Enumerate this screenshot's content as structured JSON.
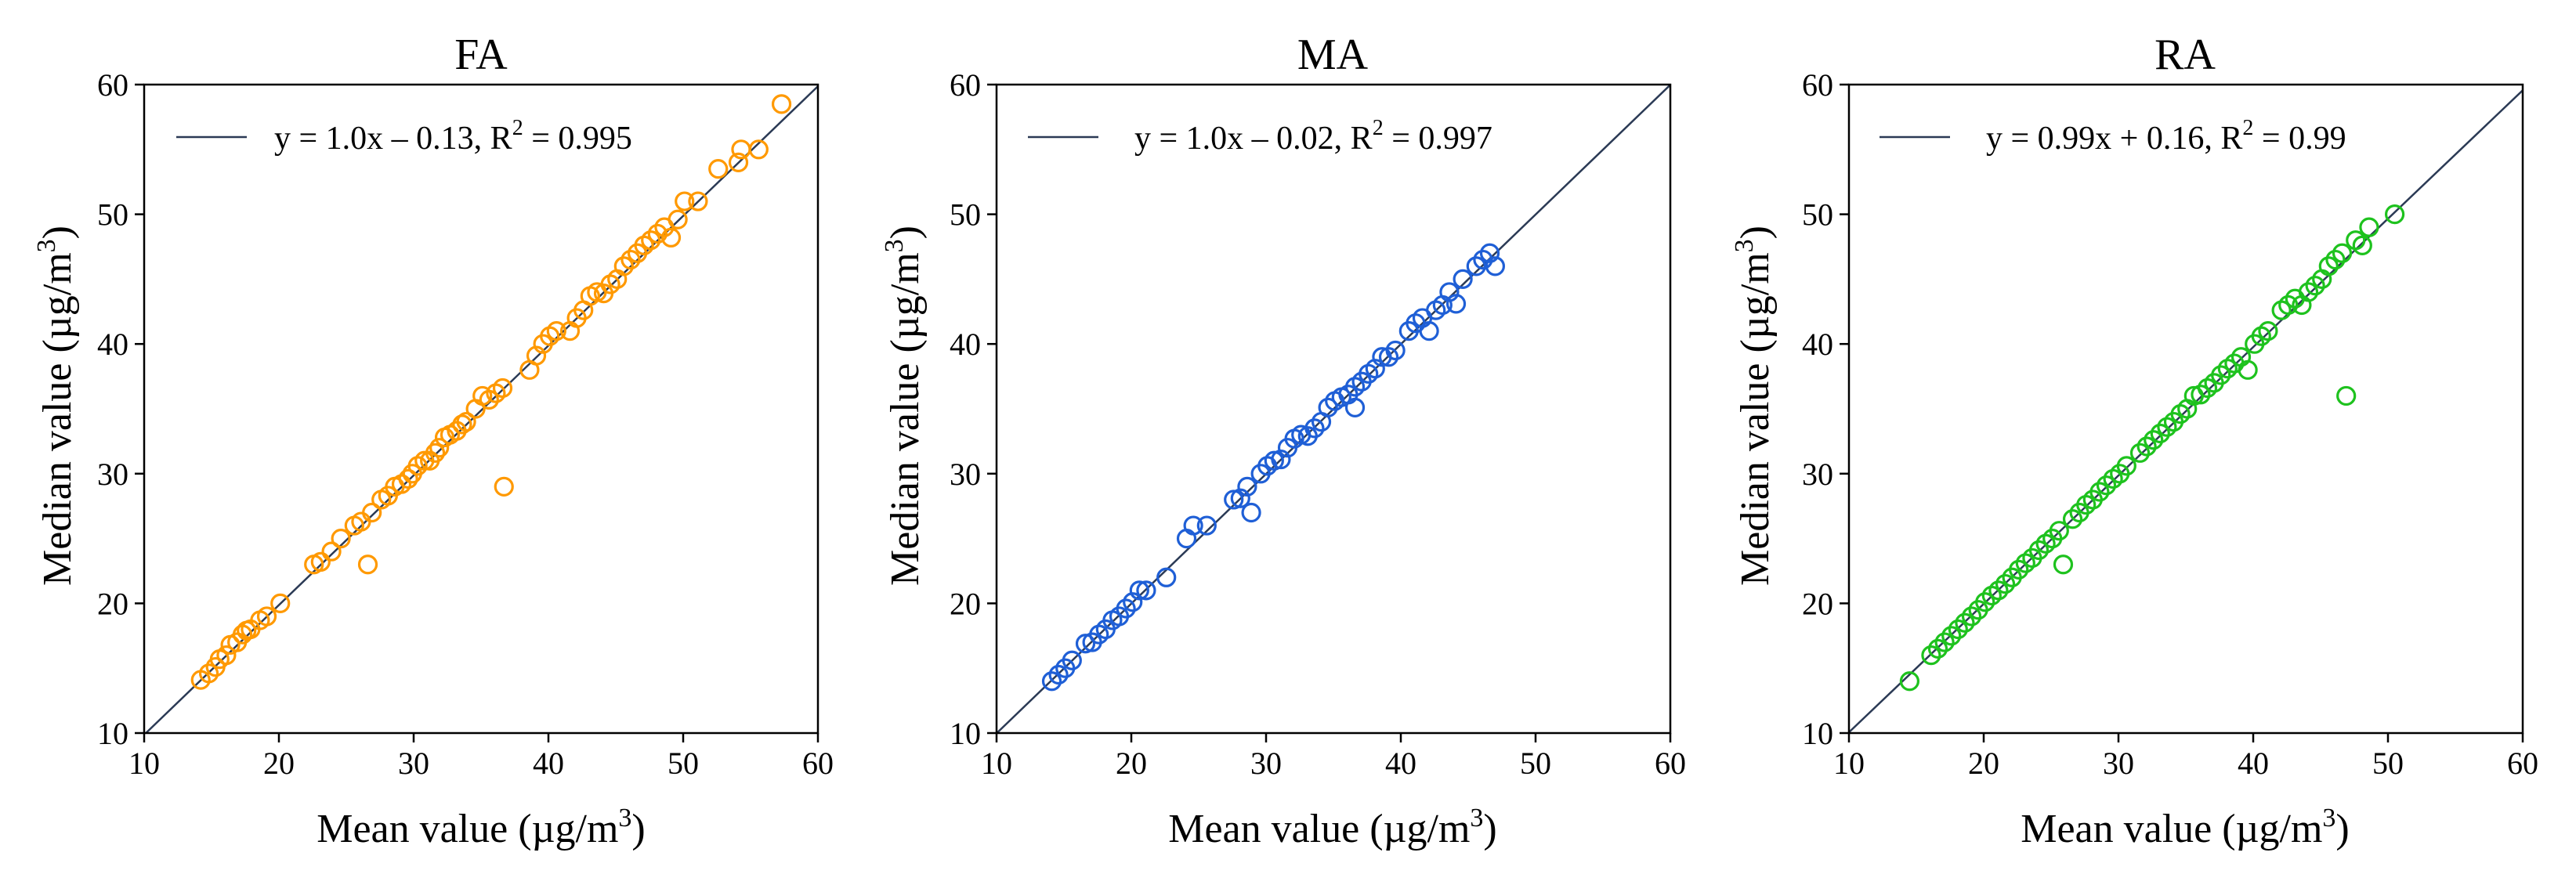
{
  "chart_data": [
    {
      "type": "scatter",
      "title": "FA",
      "xlabel": "Mean value (µg/m",
      "xlabel_sup": "3",
      "xlabel_end": ")",
      "ylabel": "Median value (µg/m",
      "ylabel_sup": "3",
      "ylabel_end": ")",
      "xlim": [
        10,
        60
      ],
      "ylim": [
        10,
        60
      ],
      "ticks": [
        10,
        20,
        30,
        40,
        50,
        60
      ],
      "color": "#FF9900",
      "line_color": "#2B3A55",
      "fit": {
        "slope": 1.0,
        "intercept": -0.13
      },
      "legend_label": "y = 1.0x – 0.13, R",
      "legend_sup": "2",
      "legend_end": " = 0.995",
      "legend_loc": "upper-left",
      "points": [
        [
          14.2,
          14.1
        ],
        [
          14.8,
          14.6
        ],
        [
          15.3,
          15.1
        ],
        [
          15.6,
          15.7
        ],
        [
          16.1,
          16.0
        ],
        [
          16.4,
          16.8
        ],
        [
          16.9,
          17.0
        ],
        [
          17.3,
          17.6
        ],
        [
          17.6,
          17.9
        ],
        [
          17.9,
          18.0
        ],
        [
          18.6,
          18.7
        ],
        [
          19.1,
          19.0
        ],
        [
          20.1,
          20.0
        ],
        [
          22.6,
          23.0
        ],
        [
          23.1,
          23.2
        ],
        [
          23.9,
          24.0
        ],
        [
          24.6,
          25.0
        ],
        [
          25.6,
          26.0
        ],
        [
          26.1,
          26.3
        ],
        [
          26.6,
          23.0
        ],
        [
          26.9,
          27.0
        ],
        [
          27.6,
          28.0
        ],
        [
          28.1,
          28.3
        ],
        [
          28.6,
          29.0
        ],
        [
          29.1,
          29.2
        ],
        [
          29.6,
          29.6
        ],
        [
          29.9,
          30.0
        ],
        [
          30.3,
          30.6
        ],
        [
          30.8,
          31.0
        ],
        [
          31.2,
          31.0
        ],
        [
          31.6,
          31.6
        ],
        [
          31.9,
          32.0
        ],
        [
          32.3,
          32.8
        ],
        [
          32.7,
          33.0
        ],
        [
          33.2,
          33.3
        ],
        [
          33.6,
          33.8
        ],
        [
          33.9,
          34.0
        ],
        [
          34.6,
          35.0
        ],
        [
          35.1,
          36.0
        ],
        [
          35.6,
          35.7
        ],
        [
          36.1,
          36.2
        ],
        [
          36.6,
          36.6
        ],
        [
          36.7,
          29.0
        ],
        [
          38.6,
          38.0
        ],
        [
          39.1,
          39.1
        ],
        [
          39.6,
          40.0
        ],
        [
          40.1,
          40.6
        ],
        [
          40.6,
          41.0
        ],
        [
          41.6,
          41.0
        ],
        [
          42.1,
          42.0
        ],
        [
          42.6,
          42.6
        ],
        [
          43.1,
          43.7
        ],
        [
          43.6,
          44.0
        ],
        [
          44.1,
          43.9
        ],
        [
          44.6,
          44.6
        ],
        [
          45.1,
          45.0
        ],
        [
          45.6,
          46.0
        ],
        [
          46.1,
          46.5
        ],
        [
          46.6,
          47.0
        ],
        [
          47.1,
          47.6
        ],
        [
          47.6,
          48.0
        ],
        [
          48.1,
          48.5
        ],
        [
          48.6,
          49.0
        ],
        [
          49.1,
          48.2
        ],
        [
          49.6,
          49.6
        ],
        [
          50.1,
          51.0
        ],
        [
          51.1,
          51.0
        ],
        [
          52.6,
          53.5
        ],
        [
          54.1,
          54.0
        ],
        [
          54.3,
          55.0
        ],
        [
          55.6,
          55.0
        ],
        [
          57.3,
          58.5
        ]
      ]
    },
    {
      "type": "scatter",
      "title": "MA",
      "xlabel": "Mean value (µg/m",
      "xlabel_sup": "3",
      "xlabel_end": ")",
      "ylabel": "Median value (µg/m",
      "ylabel_sup": "3",
      "ylabel_end": ")",
      "xlim": [
        10,
        60
      ],
      "ylim": [
        10,
        60
      ],
      "ticks": [
        10,
        20,
        30,
        40,
        50,
        60
      ],
      "color": "#1F5FD6",
      "line_color": "#2B3A55",
      "fit": {
        "slope": 1.0,
        "intercept": -0.02
      },
      "legend_label": "y = 1.0x – 0.02, R",
      "legend_sup": "2",
      "legend_end": " = 0.997",
      "legend_loc": "upper-left",
      "points": [
        [
          14.1,
          14.0
        ],
        [
          14.6,
          14.5
        ],
        [
          15.1,
          15.0
        ],
        [
          15.6,
          15.6
        ],
        [
          16.6,
          16.9
        ],
        [
          17.1,
          17.0
        ],
        [
          17.6,
          17.6
        ],
        [
          18.1,
          18.0
        ],
        [
          18.6,
          18.7
        ],
        [
          19.1,
          19.0
        ],
        [
          19.6,
          19.6
        ],
        [
          20.1,
          20.1
        ],
        [
          20.6,
          21.0
        ],
        [
          21.1,
          21.0
        ],
        [
          22.6,
          22.0
        ],
        [
          24.1,
          25.0
        ],
        [
          24.6,
          26.0
        ],
        [
          25.6,
          26.0
        ],
        [
          27.6,
          28.0
        ],
        [
          28.1,
          28.1
        ],
        [
          28.6,
          29.0
        ],
        [
          28.9,
          27.0
        ],
        [
          29.6,
          30.0
        ],
        [
          30.1,
          30.6
        ],
        [
          30.6,
          31.0
        ],
        [
          31.1,
          31.1
        ],
        [
          31.6,
          32.0
        ],
        [
          32.1,
          32.7
        ],
        [
          32.6,
          33.0
        ],
        [
          33.1,
          32.9
        ],
        [
          33.6,
          33.5
        ],
        [
          34.1,
          34.0
        ],
        [
          34.6,
          35.1
        ],
        [
          35.1,
          35.6
        ],
        [
          35.6,
          35.9
        ],
        [
          36.1,
          36.1
        ],
        [
          36.6,
          35.1
        ],
        [
          36.6,
          36.7
        ],
        [
          37.1,
          37.1
        ],
        [
          37.6,
          37.7
        ],
        [
          38.1,
          38.1
        ],
        [
          38.6,
          39.0
        ],
        [
          39.1,
          39.0
        ],
        [
          39.6,
          39.5
        ],
        [
          40.6,
          41.0
        ],
        [
          41.1,
          41.6
        ],
        [
          41.6,
          42.0
        ],
        [
          42.1,
          41.0
        ],
        [
          42.6,
          42.6
        ],
        [
          43.1,
          43.0
        ],
        [
          43.6,
          44.0
        ],
        [
          44.1,
          43.1
        ],
        [
          44.6,
          45.0
        ],
        [
          45.6,
          46.0
        ],
        [
          46.1,
          46.5
        ],
        [
          46.6,
          47.0
        ],
        [
          47.0,
          46.0
        ]
      ]
    },
    {
      "type": "scatter",
      "title": "RA",
      "xlabel": "Mean value (µg/m",
      "xlabel_sup": "3",
      "xlabel_end": ")",
      "ylabel": "Median value (µg/m",
      "ylabel_sup": "3",
      "ylabel_end": ")",
      "xlim": [
        10,
        60
      ],
      "ylim": [
        10,
        60
      ],
      "ticks": [
        10,
        20,
        30,
        40,
        50,
        60
      ],
      "color": "#1EC21E",
      "line_color": "#2B3A55",
      "fit": {
        "slope": 0.99,
        "intercept": 0.16
      },
      "legend_label": "y = 0.99x + 0.16, R",
      "legend_sup": "2",
      "legend_end": " = 0.99",
      "legend_loc": "upper-left",
      "points": [
        [
          14.5,
          14.0
        ],
        [
          16.1,
          16.0
        ],
        [
          16.6,
          16.5
        ],
        [
          17.1,
          17.0
        ],
        [
          17.6,
          17.5
        ],
        [
          18.1,
          18.0
        ],
        [
          18.6,
          18.5
        ],
        [
          19.1,
          19.0
        ],
        [
          19.6,
          19.5
        ],
        [
          20.1,
          20.1
        ],
        [
          20.6,
          20.6
        ],
        [
          21.1,
          21.0
        ],
        [
          21.6,
          21.5
        ],
        [
          22.1,
          22.0
        ],
        [
          22.6,
          22.6
        ],
        [
          23.1,
          23.1
        ],
        [
          23.6,
          23.5
        ],
        [
          24.1,
          24.1
        ],
        [
          24.6,
          24.6
        ],
        [
          25.1,
          25.0
        ],
        [
          25.6,
          25.6
        ],
        [
          25.9,
          23.0
        ],
        [
          26.6,
          26.5
        ],
        [
          27.1,
          27.0
        ],
        [
          27.6,
          27.6
        ],
        [
          28.1,
          28.0
        ],
        [
          28.6,
          28.6
        ],
        [
          29.1,
          29.1
        ],
        [
          29.6,
          29.6
        ],
        [
          30.1,
          30.0
        ],
        [
          30.6,
          30.6
        ],
        [
          31.6,
          31.6
        ],
        [
          32.1,
          32.1
        ],
        [
          32.6,
          32.6
        ],
        [
          33.1,
          33.1
        ],
        [
          33.6,
          33.6
        ],
        [
          34.1,
          34.0
        ],
        [
          34.6,
          34.6
        ],
        [
          35.1,
          35.0
        ],
        [
          35.6,
          36.0
        ],
        [
          36.1,
          36.1
        ],
        [
          36.6,
          36.6
        ],
        [
          37.1,
          37.0
        ],
        [
          37.6,
          37.6
        ],
        [
          38.1,
          38.1
        ],
        [
          38.6,
          38.5
        ],
        [
          39.1,
          39.0
        ],
        [
          39.6,
          38.0
        ],
        [
          40.1,
          40.0
        ],
        [
          40.6,
          40.6
        ],
        [
          41.1,
          41.0
        ],
        [
          42.1,
          42.6
        ],
        [
          42.6,
          43.0
        ],
        [
          43.1,
          43.5
        ],
        [
          43.6,
          43.0
        ],
        [
          44.1,
          44.0
        ],
        [
          44.6,
          44.5
        ],
        [
          45.1,
          45.0
        ],
        [
          45.6,
          46.0
        ],
        [
          46.1,
          46.5
        ],
        [
          46.6,
          47.0
        ],
        [
          46.9,
          36.0
        ],
        [
          47.6,
          48.0
        ],
        [
          48.1,
          47.6
        ],
        [
          48.6,
          49.0
        ],
        [
          50.5,
          50.0
        ]
      ]
    }
  ]
}
